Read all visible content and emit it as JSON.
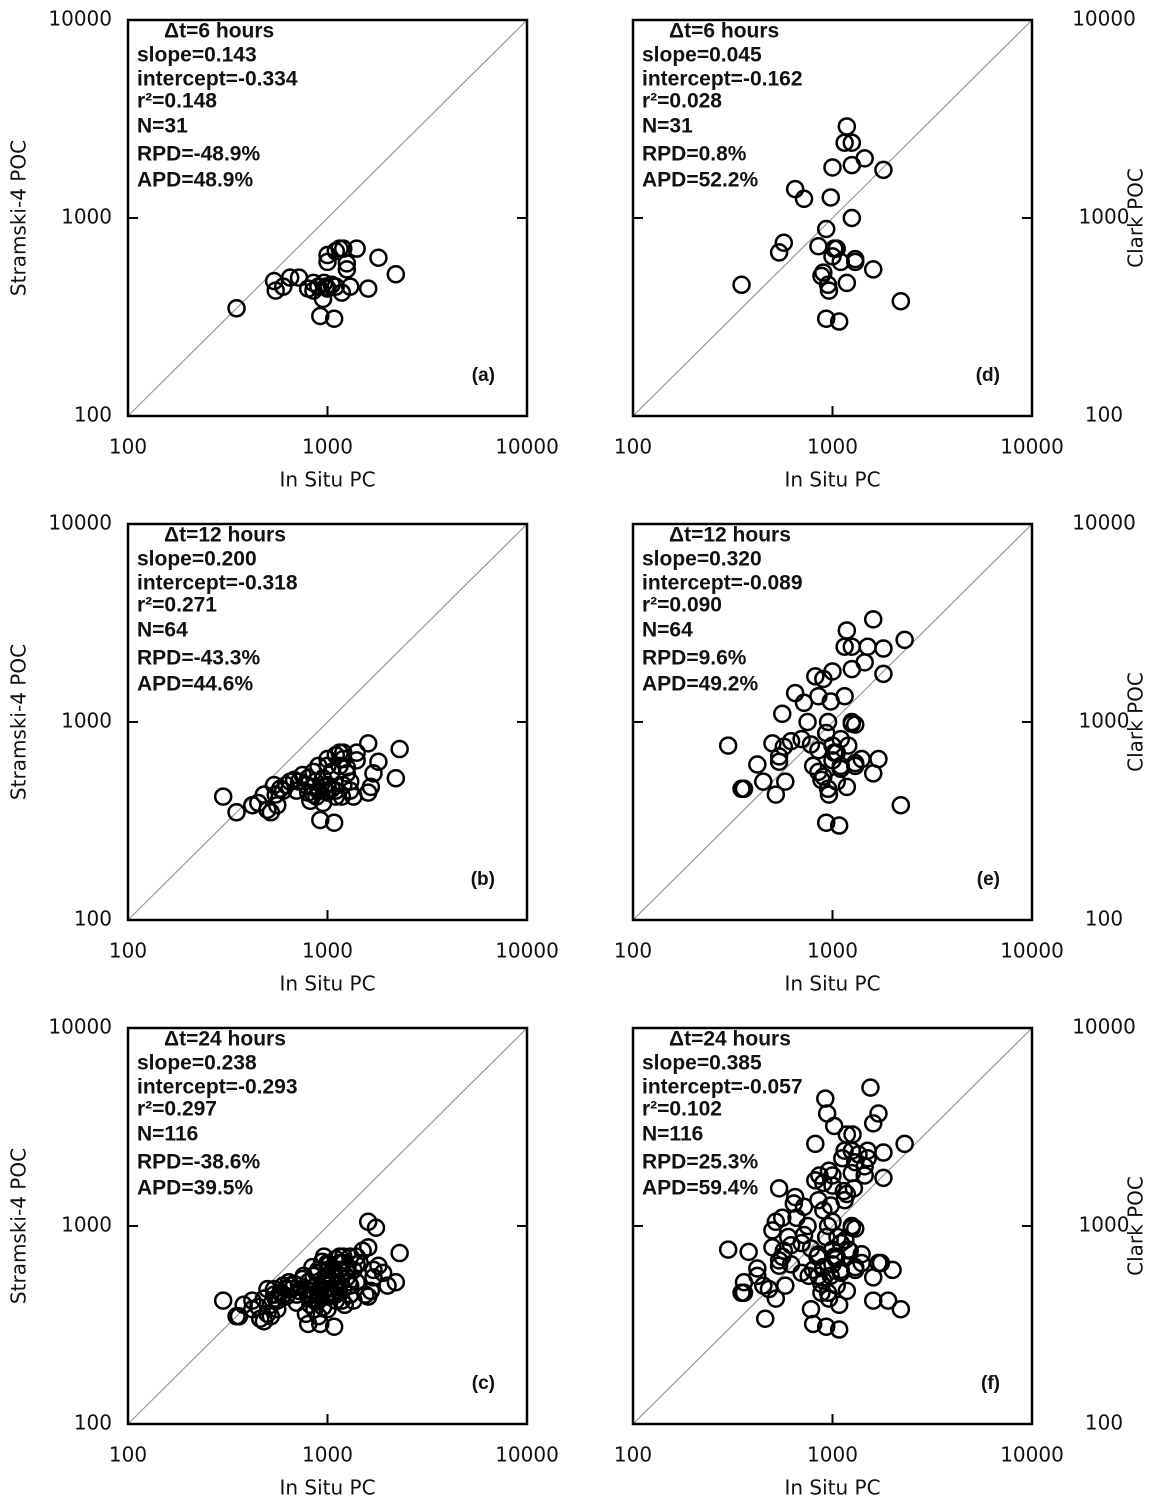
{
  "chart_data": [
    {
      "type": "scatter",
      "panel_label": "(a)",
      "xlabel": "In Situ PC",
      "ylabel": "Stramski-4 POC",
      "ylabel_side": "left",
      "stats": [
        "Δt=6  hours",
        "slope=0.143",
        "intercept=-0.334",
        "r²=0.148",
        "N=31",
        "RPD=-48.9%",
        "APD=48.9%"
      ],
      "xlim": [
        100,
        10000
      ],
      "ylim": [
        100,
        10000
      ],
      "xticks": [
        100,
        1000,
        10000
      ],
      "yticks": [
        100,
        1000,
        10000
      ],
      "log_scale": true,
      "one_to_one_line": true,
      "color": "#000000",
      "x": [
        350,
        540,
        550,
        600,
        650,
        720,
        800,
        850,
        900,
        920,
        950,
        960,
        980,
        1000,
        1000,
        1000,
        1050,
        1080,
        1100,
        1100,
        1150,
        1180,
        1200,
        1250,
        1250,
        1300,
        1400,
        1600,
        1800,
        2200,
        850
      ],
      "values": [
        350,
        480,
        430,
        450,
        500,
        500,
        440,
        430,
        450,
        320,
        390,
        470,
        450,
        440,
        600,
        650,
        460,
        310,
        450,
        680,
        700,
        420,
        700,
        550,
        590,
        450,
        700,
        440,
        630,
        520,
        470
      ]
    },
    {
      "type": "scatter",
      "panel_label": "(b)",
      "xlabel": "In Situ PC",
      "ylabel": "Stramski-4 POC",
      "ylabel_side": "left",
      "stats": [
        "Δt=12  hours",
        "slope=0.200",
        "intercept=-0.318",
        "r²=0.271",
        "N=64",
        "RPD=-43.3%",
        "APD=44.6%"
      ],
      "xlim": [
        100,
        10000
      ],
      "ylim": [
        100,
        10000
      ],
      "xticks": [
        100,
        1000,
        10000
      ],
      "yticks": [
        100,
        1000,
        10000
      ],
      "log_scale": true,
      "one_to_one_line": true,
      "color": "#000000",
      "x": [
        350,
        540,
        550,
        600,
        650,
        720,
        800,
        850,
        900,
        920,
        950,
        960,
        980,
        1000,
        1000,
        1000,
        1050,
        1080,
        1100,
        1100,
        1150,
        1180,
        1200,
        1250,
        1250,
        1300,
        1400,
        1600,
        1800,
        2200,
        850,
        300,
        420,
        450,
        480,
        500,
        520,
        560,
        580,
        620,
        680,
        700,
        750,
        780,
        800,
        820,
        850,
        870,
        880,
        900,
        950,
        1000,
        1050,
        1100,
        1150,
        1200,
        1300,
        1350,
        1400,
        1600,
        1650,
        1700,
        2300,
        1200
      ],
      "values": [
        350,
        480,
        430,
        450,
        500,
        500,
        440,
        430,
        450,
        320,
        390,
        470,
        450,
        440,
        600,
        650,
        460,
        310,
        450,
        680,
        700,
        420,
        700,
        550,
        590,
        450,
        700,
        440,
        630,
        520,
        470,
        420,
        380,
        390,
        430,
        360,
        350,
        380,
        460,
        480,
        510,
        450,
        540,
        480,
        520,
        400,
        560,
        500,
        420,
        600,
        520,
        480,
        560,
        420,
        600,
        480,
        500,
        420,
        640,
        780,
        470,
        550,
        730,
        650
      ]
    },
    {
      "type": "scatter",
      "panel_label": "(c)",
      "xlabel": "In Situ PC",
      "ylabel": "Stramski-4 POC",
      "ylabel_side": "left",
      "stats": [
        "Δt=24  hours",
        "slope=0.238",
        "intercept=-0.293",
        "r²=0.297",
        "N=116",
        "RPD=-38.6%",
        "APD=39.5%"
      ],
      "xlim": [
        100,
        10000
      ],
      "ylim": [
        100,
        10000
      ],
      "xticks": [
        100,
        1000,
        10000
      ],
      "yticks": [
        100,
        1000,
        10000
      ],
      "log_scale": true,
      "one_to_one_line": true,
      "color": "#000000",
      "x": [
        350,
        540,
        550,
        600,
        650,
        720,
        800,
        850,
        900,
        920,
        950,
        960,
        980,
        1000,
        1000,
        1000,
        1050,
        1080,
        1100,
        1100,
        1150,
        1180,
        1200,
        1250,
        1250,
        1300,
        1400,
        1600,
        1800,
        2200,
        850,
        300,
        420,
        450,
        480,
        500,
        520,
        560,
        580,
        620,
        680,
        700,
        750,
        780,
        800,
        820,
        850,
        870,
        880,
        900,
        950,
        1000,
        1050,
        1100,
        1150,
        1200,
        1300,
        1350,
        1400,
        1600,
        1650,
        1700,
        2300,
        1200,
        360,
        380,
        420,
        460,
        480,
        500,
        520,
        540,
        560,
        600,
        620,
        640,
        660,
        700,
        720,
        760,
        780,
        800,
        820,
        840,
        860,
        880,
        900,
        920,
        940,
        960,
        980,
        1000,
        1020,
        1040,
        1060,
        1080,
        1120,
        1140,
        1160,
        1180,
        1220,
        1260,
        1280,
        1300,
        1350,
        1400,
        1450,
        1500,
        1550,
        1600,
        1700,
        1750,
        1900,
        2000,
        1000,
        900
      ],
      "values": [
        350,
        480,
        430,
        450,
        500,
        500,
        440,
        430,
        450,
        320,
        390,
        470,
        450,
        440,
        600,
        650,
        460,
        310,
        450,
        680,
        700,
        420,
        700,
        550,
        590,
        450,
        700,
        440,
        630,
        520,
        470,
        420,
        380,
        390,
        430,
        360,
        350,
        380,
        460,
        480,
        510,
        450,
        540,
        480,
        520,
        400,
        560,
        500,
        420,
        600,
        520,
        480,
        560,
        420,
        600,
        480,
        500,
        420,
        640,
        780,
        470,
        550,
        730,
        650,
        350,
        400,
        420,
        340,
        330,
        480,
        400,
        450,
        420,
        500,
        440,
        520,
        480,
        410,
        470,
        560,
        360,
        320,
        450,
        620,
        380,
        580,
        350,
        480,
        660,
        700,
        560,
        380,
        640,
        520,
        460,
        600,
        520,
        470,
        650,
        560,
        400,
        620,
        520,
        700,
        600,
        520,
        650,
        750,
        450,
        1050,
        600,
        980,
        580,
        500,
        550,
        420
      ]
    },
    {
      "type": "scatter",
      "panel_label": "(d)",
      "xlabel": "In Situ PC",
      "ylabel": "Clark POC",
      "ylabel_side": "right",
      "stats": [
        "Δt=6  hours",
        "slope=0.045",
        "intercept=-0.162",
        "r²=0.028",
        "N=31",
        "RPD=0.8%",
        "APD=52.2%"
      ],
      "xlim": [
        100,
        10000
      ],
      "ylim": [
        100,
        10000
      ],
      "xticks": [
        100,
        1000,
        10000
      ],
      "yticks": [
        100,
        1000,
        10000
      ],
      "log_scale": true,
      "one_to_one_line": true,
      "color": "#000000",
      "x": [
        350,
        540,
        570,
        650,
        720,
        850,
        880,
        930,
        930,
        950,
        960,
        980,
        1000,
        1020,
        1050,
        1080,
        1100,
        1150,
        1180,
        1180,
        1250,
        1250,
        1250,
        1300,
        1300,
        1450,
        1600,
        1800,
        2200,
        1000,
        900
      ],
      "values": [
        460,
        670,
        750,
        1400,
        1250,
        720,
        510,
        310,
        880,
        460,
        430,
        1270,
        1800,
        700,
        700,
        300,
        600,
        2400,
        2900,
        470,
        1850,
        2400,
        1000,
        620,
        600,
        2000,
        550,
        1750,
        380,
        640,
        530
      ]
    },
    {
      "type": "scatter",
      "panel_label": "(e)",
      "xlabel": "In Situ PC",
      "ylabel": "Clark POC",
      "ylabel_side": "right",
      "stats": [
        "Δt=12  hours",
        "slope=0.320",
        "intercept=-0.089",
        "r²=0.090",
        "N=64",
        "RPD=9.6%",
        "APD=49.2%"
      ],
      "xlim": [
        100,
        10000
      ],
      "ylim": [
        100,
        10000
      ],
      "xticks": [
        100,
        1000,
        10000
      ],
      "yticks": [
        100,
        1000,
        10000
      ],
      "log_scale": true,
      "one_to_one_line": true,
      "color": "#000000",
      "x": [
        350,
        540,
        570,
        650,
        720,
        850,
        880,
        930,
        930,
        950,
        960,
        980,
        1000,
        1020,
        1050,
        1080,
        1100,
        1150,
        1180,
        1180,
        1250,
        1250,
        1250,
        1300,
        1300,
        1450,
        1600,
        1800,
        2200,
        1000,
        900,
        300,
        360,
        420,
        450,
        500,
        520,
        540,
        560,
        580,
        620,
        700,
        750,
        780,
        800,
        820,
        850,
        900,
        950,
        1000,
        1050,
        1100,
        1150,
        1200,
        1250,
        1300,
        1400,
        1500,
        1600,
        1700,
        1800,
        2300,
        850,
        1100
      ],
      "values": [
        460,
        670,
        750,
        1400,
        1250,
        720,
        510,
        310,
        880,
        460,
        430,
        1270,
        1800,
        700,
        700,
        300,
        600,
        2400,
        2900,
        470,
        1850,
        2400,
        1000,
        620,
        600,
        2000,
        550,
        1750,
        380,
        640,
        530,
        760,
        460,
        610,
        500,
        780,
        430,
        630,
        1100,
        500,
        800,
        820,
        1000,
        770,
        600,
        1700,
        1350,
        1650,
        1000,
        760,
        500,
        820,
        1350,
        760,
        980,
        970,
        650,
        2400,
        3300,
        650,
        2350,
        2600,
        560,
        580
      ]
    },
    {
      "type": "scatter",
      "panel_label": "(f)",
      "xlabel": "In Situ PC",
      "ylabel": "Clark POC",
      "ylabel_side": "right",
      "stats": [
        "Δt=24  hours",
        "slope=0.385",
        "intercept=-0.057",
        "r²=0.102",
        "N=116",
        "RPD=25.3%",
        "APD=59.4%"
      ],
      "xlim": [
        100,
        10000
      ],
      "ylim": [
        100,
        10000
      ],
      "xticks": [
        100,
        1000,
        10000
      ],
      "yticks": [
        100,
        1000,
        10000
      ],
      "log_scale": true,
      "one_to_one_line": true,
      "color": "#000000",
      "x": [
        350,
        540,
        570,
        650,
        720,
        850,
        880,
        930,
        930,
        950,
        960,
        980,
        1000,
        1020,
        1050,
        1080,
        1100,
        1150,
        1180,
        1180,
        1250,
        1250,
        1250,
        1300,
        1300,
        1450,
        1600,
        1800,
        2200,
        1000,
        900,
        300,
        360,
        420,
        450,
        500,
        520,
        540,
        560,
        580,
        620,
        700,
        750,
        780,
        800,
        820,
        850,
        900,
        950,
        1000,
        1050,
        1100,
        1150,
        1200,
        1250,
        1300,
        1400,
        1500,
        1600,
        1700,
        1800,
        2300,
        850,
        1100,
        360,
        380,
        420,
        460,
        480,
        500,
        520,
        540,
        560,
        600,
        620,
        640,
        660,
        700,
        720,
        760,
        780,
        800,
        820,
        840,
        860,
        880,
        900,
        920,
        940,
        960,
        980,
        1000,
        1020,
        1040,
        1060,
        1080,
        1120,
        1140,
        1160,
        1180,
        1220,
        1260,
        1280,
        1300,
        1350,
        1400,
        1450,
        1500,
        1550,
        1600,
        1700,
        1750,
        1900,
        2000,
        1000,
        900
      ],
      "values": [
        460,
        670,
        750,
        1400,
        1250,
        720,
        510,
        310,
        880,
        460,
        430,
        1270,
        1800,
        700,
        700,
        300,
        600,
        2400,
        2900,
        470,
        1850,
        2400,
        1000,
        620,
        600,
        2000,
        550,
        1750,
        380,
        640,
        530,
        760,
        460,
        610,
        500,
        780,
        430,
        630,
        1100,
        500,
        800,
        820,
        1000,
        770,
        600,
        1700,
        1350,
        1650,
        1000,
        760,
        500,
        820,
        1350,
        760,
        980,
        970,
        650,
        2400,
        3300,
        650,
        2350,
        2600,
        560,
        580,
        520,
        740,
        560,
        340,
        480,
        950,
        1050,
        1550,
        700,
        880,
        640,
        1300,
        1100,
        580,
        900,
        560,
        380,
        320,
        2600,
        700,
        1800,
        460,
        1200,
        4400,
        3700,
        1900,
        560,
        1600,
        3200,
        680,
        880,
        400,
        2200,
        1500,
        850,
        1450,
        750,
        2900,
        1550,
        2100,
        2300,
        720,
        1800,
        2200,
        5000,
        420,
        3700,
        650,
        420,
        600,
        1050,
        620
      ]
    }
  ]
}
